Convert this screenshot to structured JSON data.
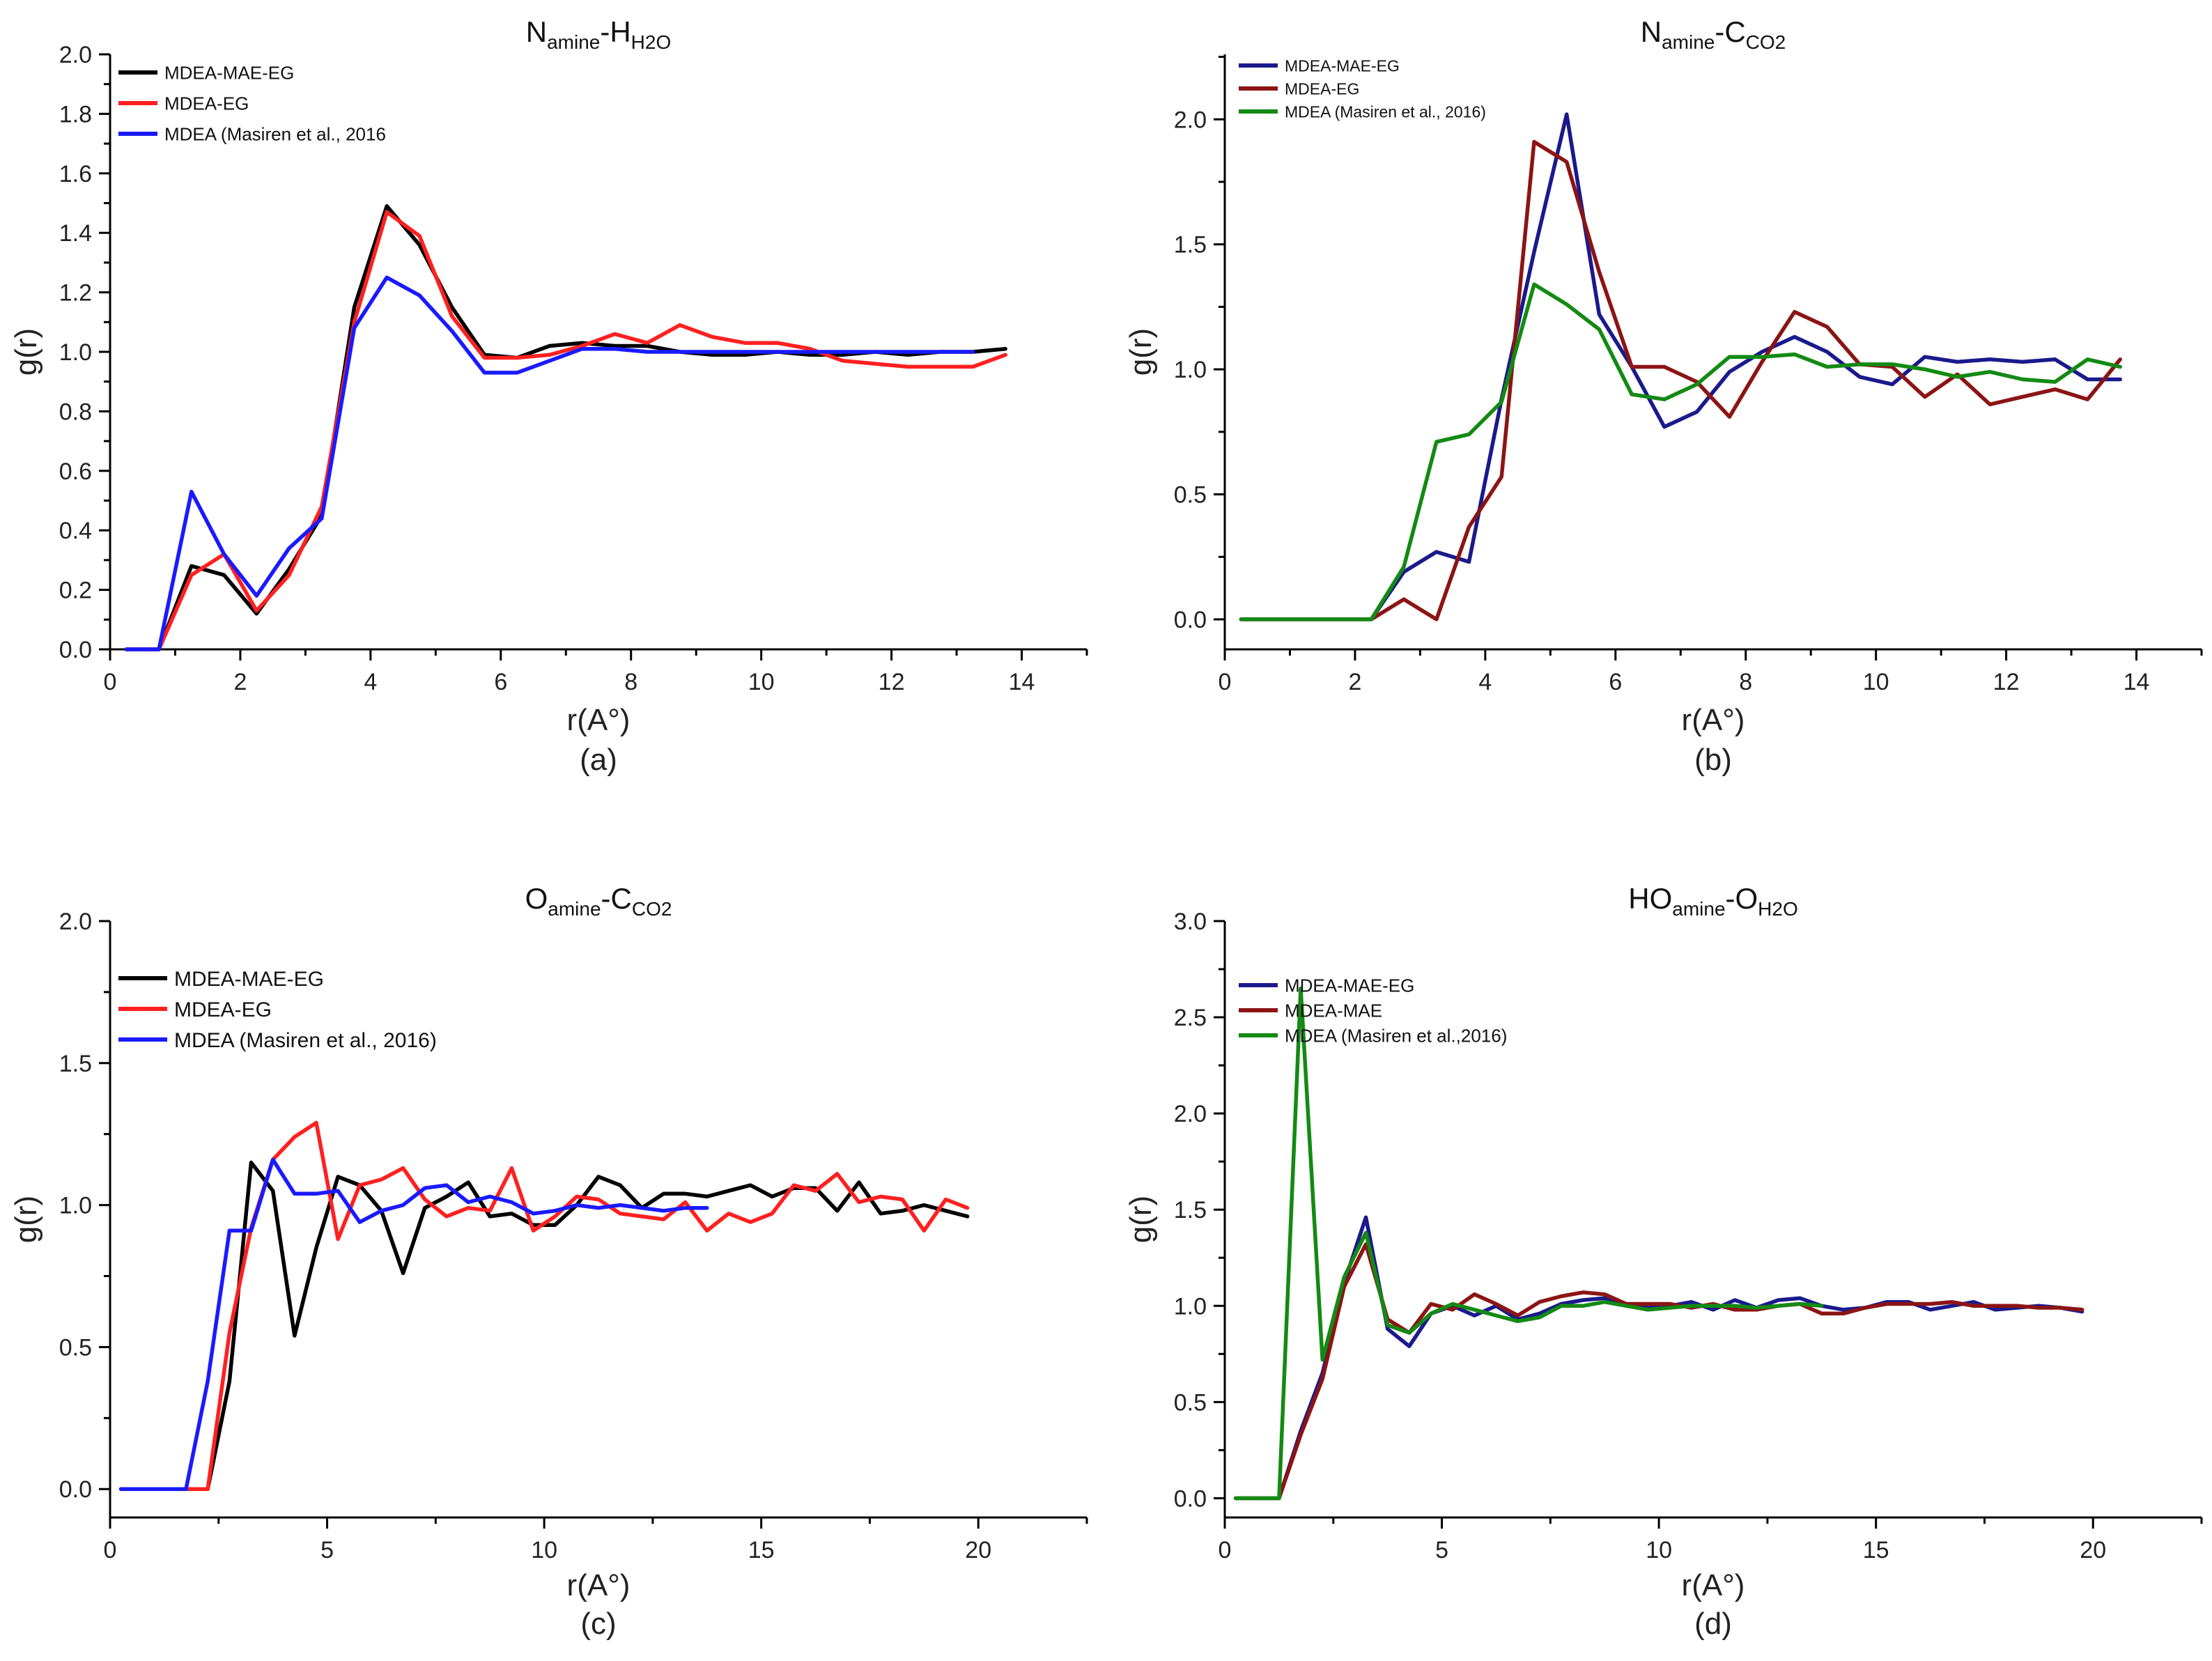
{
  "chart_data": [
    {
      "panel": "(a)",
      "type": "line",
      "title": {
        "main": "N",
        "sub1": "amine",
        "mid": "-H",
        "sub2": "H2O"
      },
      "xlabel": "r(A°)",
      "ylabel": "g(r)",
      "xlim": [
        0,
        15
      ],
      "ylim": [
        0,
        2.0
      ],
      "xticks": [
        0,
        2,
        4,
        6,
        8,
        10,
        12,
        14
      ],
      "xtick_labels": [
        "0",
        "2",
        "4",
        "6",
        "8",
        "10",
        "12",
        "14"
      ],
      "yticks": [
        0.0,
        0.2,
        0.4,
        0.6,
        0.8,
        1.0,
        1.2,
        1.4,
        1.6,
        1.8,
        2.0
      ],
      "ytick_labels": [
        "0.0",
        "0.2",
        "0.4",
        "0.6",
        "0.8",
        "1.0",
        "1.2",
        "1.4",
        "1.6",
        "1.8",
        "2.0"
      ],
      "legend_position": "top-left",
      "series": [
        {
          "name": "MDEA-MAE-EG",
          "color": "#000000",
          "x": [
            0.25,
            0.75,
            1.25,
            1.75,
            2.25,
            2.75,
            3.25,
            3.75,
            4.25,
            4.75,
            5.25,
            5.75,
            6.25,
            6.75,
            7.25,
            7.75,
            8.25,
            8.75,
            9.25,
            9.75,
            10.25,
            10.75,
            11.25,
            11.75,
            12.25,
            12.75,
            13.25,
            13.75
          ],
          "y": [
            0,
            0,
            0.28,
            0.25,
            0.12,
            0.27,
            0.45,
            1.15,
            1.49,
            1.36,
            1.15,
            0.99,
            0.98,
            1.02,
            1.03,
            1.02,
            1.02,
            1.0,
            0.99,
            0.99,
            1.0,
            0.99,
            0.99,
            1.0,
            0.99,
            1.0,
            1.0,
            1.01
          ]
        },
        {
          "name": "MDEA-EG",
          "color": "#ff2020",
          "x": [
            0.25,
            0.75,
            1.25,
            1.75,
            2.25,
            2.75,
            3.25,
            3.75,
            4.25,
            4.75,
            5.25,
            5.75,
            6.25,
            6.75,
            7.25,
            7.75,
            8.25,
            8.75,
            9.25,
            9.75,
            10.25,
            10.75,
            11.25,
            11.75,
            12.25,
            12.75,
            13.25,
            13.75
          ],
          "y": [
            0,
            0,
            0.25,
            0.32,
            0.13,
            0.25,
            0.48,
            1.1,
            1.47,
            1.39,
            1.12,
            0.98,
            0.98,
            0.99,
            1.02,
            1.06,
            1.03,
            1.09,
            1.05,
            1.03,
            1.03,
            1.01,
            0.97,
            0.96,
            0.95,
            0.95,
            0.95,
            0.99
          ]
        },
        {
          "name": "MDEA (Masiren et al., 2016",
          "color": "#1a1aff",
          "x": [
            0.25,
            0.75,
            1.25,
            1.75,
            2.25,
            2.75,
            3.25,
            3.75,
            4.25,
            4.75,
            5.25,
            5.75,
            6.25,
            6.75,
            7.25,
            7.75,
            8.25,
            8.75,
            9.25,
            9.75,
            10.25,
            10.75,
            11.25,
            11.75,
            12.25,
            12.75,
            13.25
          ],
          "y": [
            0,
            0,
            0.53,
            0.32,
            0.18,
            0.34,
            0.44,
            1.08,
            1.25,
            1.19,
            1.07,
            0.93,
            0.93,
            0.97,
            1.01,
            1.01,
            1.0,
            1.0,
            1.0,
            1.0,
            1.0,
            1.0,
            1.0,
            1.0,
            1.0,
            1.0,
            1.0
          ]
        }
      ]
    },
    {
      "panel": "(b)",
      "type": "line",
      "title": {
        "main": "N",
        "sub1": "amine",
        "mid": "-C",
        "sub2": "CO2"
      },
      "xlabel": "r(A°)",
      "ylabel": "g(r)",
      "xlim": [
        0,
        15
      ],
      "ylim": [
        -0.12,
        2.26
      ],
      "xticks": [
        0,
        2,
        4,
        6,
        8,
        10,
        12,
        14
      ],
      "xtick_labels": [
        "0",
        "2",
        "4",
        "6",
        "8",
        "10",
        "12",
        "14"
      ],
      "yticks": [
        0.0,
        0.5,
        1.0,
        1.5,
        2.0
      ],
      "ytick_labels": [
        "0.0",
        "0.5",
        "1.0",
        "1.5",
        "2.0"
      ],
      "legend_position": "top-left",
      "series": [
        {
          "name": "MDEA-MAE-EG",
          "color": "#1a1a8c",
          "x": [
            0.25,
            0.75,
            1.25,
            1.75,
            2.25,
            2.75,
            3.25,
            3.75,
            4.25,
            4.75,
            5.25,
            5.75,
            6.25,
            6.75,
            7.25,
            7.75,
            8.25,
            8.75,
            9.25,
            9.75,
            10.25,
            10.75,
            11.25,
            11.75,
            12.25,
            12.75,
            13.25,
            13.75
          ],
          "y": [
            0,
            0,
            0,
            0,
            0,
            0.19,
            0.27,
            0.23,
            0.88,
            1.47,
            2.02,
            1.22,
            1.01,
            0.77,
            0.83,
            0.99,
            1.07,
            1.13,
            1.07,
            0.97,
            0.94,
            1.05,
            1.03,
            1.04,
            1.03,
            1.04,
            0.96,
            0.96
          ]
        },
        {
          "name": "MDEA-EG",
          "color": "#8c1414",
          "x": [
            0.25,
            0.75,
            1.25,
            1.75,
            2.25,
            2.75,
            3.25,
            3.75,
            4.25,
            4.75,
            5.25,
            5.75,
            6.25,
            6.75,
            7.25,
            7.75,
            8.25,
            8.75,
            9.25,
            9.75,
            10.25,
            10.75,
            11.25,
            11.75,
            12.25,
            12.75,
            13.25,
            13.75
          ],
          "y": [
            0,
            0,
            0,
            0,
            0,
            0.08,
            0,
            0.37,
            0.57,
            1.91,
            1.83,
            1.39,
            1.01,
            1.01,
            0.95,
            0.81,
            1.03,
            1.23,
            1.17,
            1.02,
            1.01,
            0.89,
            0.98,
            0.86,
            0.89,
            0.92,
            0.88,
            1.04
          ]
        },
        {
          "name": "MDEA (Masiren et al., 2016)",
          "color": "#138a13",
          "x": [
            0.25,
            0.75,
            1.25,
            1.75,
            2.25,
            2.75,
            3.25,
            3.75,
            4.25,
            4.75,
            5.25,
            5.75,
            6.25,
            6.75,
            7.25,
            7.75,
            8.25,
            8.75,
            9.25,
            9.75,
            10.25,
            10.75,
            11.25,
            11.75,
            12.25,
            12.75,
            13.25,
            13.75
          ],
          "y": [
            0,
            0,
            0,
            0,
            0,
            0.21,
            0.71,
            0.74,
            0.87,
            1.34,
            1.26,
            1.16,
            0.9,
            0.88,
            0.94,
            1.05,
            1.05,
            1.06,
            1.01,
            1.02,
            1.02,
            1.0,
            0.97,
            0.99,
            0.96,
            0.95,
            1.04,
            1.01
          ]
        }
      ]
    },
    {
      "panel": "(c)",
      "type": "line",
      "title": {
        "main": "O",
        "sub1": "amine",
        "mid": "-C",
        "sub2": "CO2"
      },
      "xlabel": "r(A°)",
      "ylabel": "g(r)",
      "xlim": [
        0,
        22.5
      ],
      "ylim": [
        -0.1,
        2.0
      ],
      "xticks": [
        0,
        5,
        10,
        15,
        20
      ],
      "xtick_labels": [
        "0",
        "5",
        "10",
        "15",
        "20"
      ],
      "yticks": [
        0.0,
        0.5,
        1.0,
        1.5,
        2.0
      ],
      "ytick_labels": [
        "0.0",
        "0.5",
        "1.0",
        "1.5",
        "2.0"
      ],
      "legend_position": "top-left",
      "series": [
        {
          "name": "MDEA-MAE-EG",
          "color": "#000000",
          "x": [
            0.25,
            0.75,
            1.25,
            1.75,
            2.25,
            2.75,
            3.25,
            3.75,
            4.25,
            4.75,
            5.25,
            5.75,
            6.25,
            6.75,
            7.25,
            7.75,
            8.25,
            8.75,
            9.25,
            9.75,
            10.25,
            10.75,
            11.25,
            11.75,
            12.25,
            12.75,
            13.25,
            13.75,
            14.25,
            14.75,
            15.25,
            15.75,
            16.25,
            16.75,
            17.25,
            17.75,
            18.25,
            18.75,
            19.25,
            19.75
          ],
          "y": [
            0,
            0,
            0,
            0,
            0,
            0.38,
            1.15,
            1.05,
            0.54,
            0.85,
            1.1,
            1.07,
            0.98,
            0.76,
            0.99,
            1.03,
            1.08,
            0.96,
            0.97,
            0.93,
            0.93,
            1.0,
            1.1,
            1.07,
            0.99,
            1.04,
            1.04,
            1.03,
            1.05,
            1.07,
            1.03,
            1.06,
            1.06,
            0.98,
            1.08,
            0.97,
            0.98,
            1.0,
            0.98,
            0.96
          ]
        },
        {
          "name": "MDEA-EG",
          "color": "#ff2020",
          "x": [
            0.25,
            0.75,
            1.25,
            1.75,
            2.25,
            2.75,
            3.25,
            3.75,
            4.25,
            4.75,
            5.25,
            5.75,
            6.25,
            6.75,
            7.25,
            7.75,
            8.25,
            8.75,
            9.25,
            9.75,
            10.25,
            10.75,
            11.25,
            11.75,
            12.25,
            12.75,
            13.25,
            13.75,
            14.25,
            14.75,
            15.25,
            15.75,
            16.25,
            16.75,
            17.25,
            17.75,
            18.25,
            18.75,
            19.25,
            19.75
          ],
          "y": [
            0,
            0,
            0,
            0,
            0,
            0.55,
            0.92,
            1.16,
            1.24,
            1.29,
            0.88,
            1.07,
            1.09,
            1.13,
            1.02,
            0.96,
            0.99,
            0.98,
            1.13,
            0.91,
            0.96,
            1.03,
            1.02,
            0.97,
            0.96,
            0.95,
            1.01,
            0.91,
            0.97,
            0.94,
            0.97,
            1.07,
            1.05,
            1.11,
            1.01,
            1.03,
            1.02,
            0.91,
            1.02,
            0.99
          ]
        },
        {
          "name": "MDEA (Masiren et al., 2016)",
          "color": "#1a1aff",
          "x": [
            0.25,
            0.75,
            1.25,
            1.75,
            2.25,
            2.75,
            3.25,
            3.75,
            4.25,
            4.75,
            5.25,
            5.75,
            6.25,
            6.75,
            7.25,
            7.75,
            8.25,
            8.75,
            9.25,
            9.75,
            10.25,
            10.75,
            11.25,
            11.75,
            12.25,
            12.75,
            13.25,
            13.75
          ],
          "y": [
            0,
            0,
            0,
            0,
            0.38,
            0.91,
            0.91,
            1.16,
            1.04,
            1.04,
            1.05,
            0.94,
            0.98,
            1.0,
            1.06,
            1.07,
            1.01,
            1.03,
            1.01,
            0.97,
            0.98,
            1.0,
            0.99,
            1.0,
            0.99,
            0.98,
            0.99,
            0.99
          ]
        }
      ]
    },
    {
      "panel": "(d)",
      "type": "line",
      "title": {
        "main": "HO",
        "sub1": "amine",
        "mid": "-O",
        "sub2": "H2O"
      },
      "xlabel": "r(A°)",
      "ylabel": "g(r)",
      "xlim": [
        0,
        22.5
      ],
      "ylim": [
        -0.1,
        3.0
      ],
      "xticks": [
        0,
        5,
        10,
        15,
        20
      ],
      "xtick_labels": [
        "0",
        "5",
        "10",
        "15",
        "20"
      ],
      "yticks": [
        0.0,
        0.5,
        1.0,
        1.5,
        2.0,
        2.5,
        3.0
      ],
      "ytick_labels": [
        "0.0",
        "0.5",
        "1.0",
        "1.5",
        "2.0",
        "2.5",
        "3.0"
      ],
      "legend_position": "top-left",
      "series": [
        {
          "name": "MDEA-MAE-EG",
          "color": "#1a1a8c",
          "x": [
            0.25,
            0.75,
            1.25,
            1.75,
            2.25,
            2.75,
            3.25,
            3.75,
            4.25,
            4.75,
            5.25,
            5.75,
            6.25,
            6.75,
            7.25,
            7.75,
            8.25,
            8.75,
            9.25,
            9.75,
            10.25,
            10.75,
            11.25,
            11.75,
            12.25,
            12.75,
            13.25,
            13.75,
            14.25,
            14.75,
            15.25,
            15.75,
            16.25,
            16.75,
            17.25,
            17.75,
            18.25,
            18.75,
            19.25,
            19.75
          ],
          "y": [
            0,
            0,
            0,
            0.35,
            0.65,
            1.12,
            1.46,
            0.88,
            0.79,
            0.96,
            1.0,
            0.95,
            1.0,
            0.93,
            0.96,
            1.01,
            1.03,
            1.04,
            1.01,
            0.99,
            1.0,
            1.02,
            0.98,
            1.03,
            0.99,
            1.03,
            1.04,
            1.0,
            0.98,
            0.99,
            1.02,
            1.02,
            0.98,
            1.0,
            1.02,
            0.98,
            0.99,
            1.0,
            0.99,
            0.97
          ]
        },
        {
          "name": "MDEA-MAE",
          "color": "#8c1414",
          "x": [
            0.25,
            0.75,
            1.25,
            1.75,
            2.25,
            2.75,
            3.25,
            3.75,
            4.25,
            4.75,
            5.25,
            5.75,
            6.25,
            6.75,
            7.25,
            7.75,
            8.25,
            8.75,
            9.25,
            9.75,
            10.25,
            10.75,
            11.25,
            11.75,
            12.25,
            12.75,
            13.25,
            13.75,
            14.25,
            14.75,
            15.25,
            15.75,
            16.25,
            16.75,
            17.25,
            17.75,
            18.25,
            18.75,
            19.25,
            19.75
          ],
          "y": [
            0,
            0,
            0,
            0.33,
            0.62,
            1.1,
            1.32,
            0.93,
            0.86,
            1.01,
            0.98,
            1.06,
            1.01,
            0.95,
            1.02,
            1.05,
            1.07,
            1.06,
            1.01,
            1.01,
            1.01,
            0.99,
            1.01,
            0.98,
            0.98,
            1.0,
            1.01,
            0.96,
            0.96,
            0.99,
            1.01,
            1.01,
            1.01,
            1.02,
            1.0,
            1.0,
            1.0,
            0.99,
            0.99,
            0.98
          ]
        },
        {
          "name": "MDEA (Masiren et al.,2016)",
          "color": "#138a13",
          "x": [
            0.25,
            0.75,
            1.25,
            1.75,
            2.25,
            2.75,
            3.25,
            3.75,
            4.25,
            4.75,
            5.25,
            5.75,
            6.25,
            6.75,
            7.25,
            7.75,
            8.25,
            8.75,
            9.25,
            9.75,
            10.25,
            10.75,
            11.25,
            11.75,
            12.25,
            12.75,
            13.25,
            13.75
          ],
          "y": [
            0,
            0,
            0,
            2.65,
            0.72,
            1.15,
            1.38,
            0.9,
            0.86,
            0.96,
            1.01,
            0.98,
            0.95,
            0.92,
            0.94,
            1.0,
            1.0,
            1.02,
            1.0,
            0.98,
            0.99,
            1.0,
            1.0,
            1.0,
            0.99,
            1.0,
            1.01,
            1.0
          ]
        }
      ]
    }
  ]
}
